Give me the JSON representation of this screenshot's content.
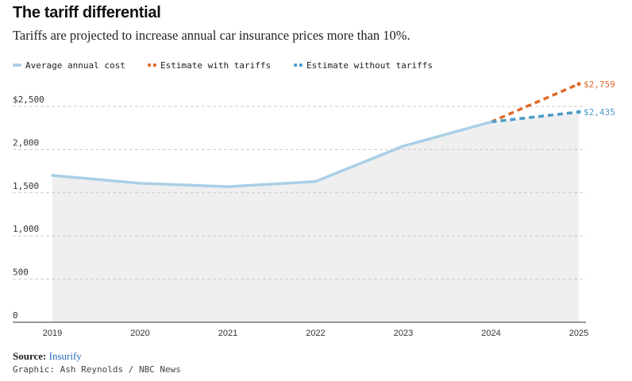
{
  "header": {
    "title": "The tariff differential",
    "subtitle": "Tariffs are projected to increase annual car insurance prices more than 10%."
  },
  "footer": {
    "source_label": "Source:",
    "source_name": "Insurify",
    "credit": "Graphic: Ash Reynolds / NBC News"
  },
  "colors": {
    "average": "#a9cfe6",
    "with_tariffs": "#e0692a",
    "without_tariffs": "#4a9cc6",
    "area_fill": "#efefef",
    "grid": "#cccccc"
  },
  "chart_data": {
    "type": "line",
    "title": "The tariff differential",
    "subtitle": "Tariffs are projected to increase annual car insurance prices more than 10%.",
    "x": [
      "2019",
      "2020",
      "2021",
      "2022",
      "2023",
      "2024",
      "2025"
    ],
    "y_ticks": [
      "$2,500",
      "2,000",
      "1,500",
      "1,000",
      "500",
      "0"
    ],
    "y_tick_values": [
      2500,
      2000,
      1500,
      1000,
      500,
      0
    ],
    "ylim": [
      0,
      2500
    ],
    "grid": true,
    "legend_position": "top-left",
    "series": [
      {
        "name": "Average annual cost",
        "style": "solid",
        "color": "#a9cfe6",
        "points": [
          {
            "x": "2019",
            "y": 1700
          },
          {
            "x": "2020",
            "y": 1610
          },
          {
            "x": "2021",
            "y": 1570
          },
          {
            "x": "2022",
            "y": 1630
          },
          {
            "x": "2023",
            "y": 2040
          },
          {
            "x": "2024",
            "y": 2320
          }
        ]
      },
      {
        "name": "Estimate with tariffs",
        "style": "dashed",
        "color": "#e0692a",
        "points": [
          {
            "x": "2024",
            "y": 2320
          },
          {
            "x": "2025",
            "y": 2759
          }
        ],
        "end_label": "$2,759"
      },
      {
        "name": "Estimate without tariffs",
        "style": "dashed",
        "color": "#4a9cc6",
        "points": [
          {
            "x": "2024",
            "y": 2320
          },
          {
            "x": "2025",
            "y": 2435
          }
        ],
        "end_label": "$2,435"
      }
    ]
  }
}
